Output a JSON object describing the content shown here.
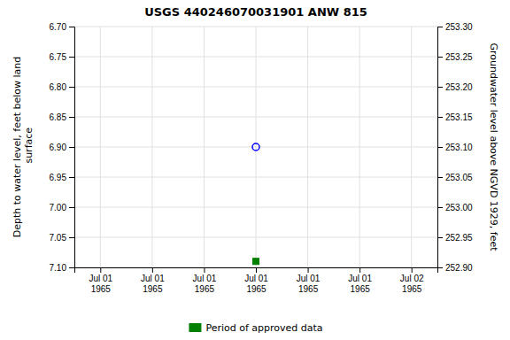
{
  "chart_data": {
    "type": "scatter",
    "title": "USGS 440246070031901 ANW  815",
    "y_label": "Depth to water level, feet below land\n surface",
    "y2_label": "Groundwater level above NGVD 1929, feet",
    "categories": [
      "Jul 01\n1965",
      "Jul 01\n1965",
      "Jul 01\n1965",
      "Jul 01\n1965",
      "Jul 01\n1965",
      "Jul 01\n1965",
      "Jul 02\n1965"
    ],
    "series": [
      {
        "color": "#0000ff",
        "marker": "circle-open",
        "values": [
          null,
          null,
          null,
          6.9,
          null,
          null,
          null
        ]
      },
      {
        "name": "Period of approved data",
        "color": "#008000",
        "marker": "square",
        "values": [
          null,
          null,
          null,
          7.09,
          null,
          null,
          null
        ]
      }
    ],
    "ylim": [
      7.1,
      6.7
    ],
    "yticks": [
      {
        "value": 6.7,
        "label": "6.70"
      },
      6.75,
      {
        "value": 6.8,
        "label": "6.80"
      },
      6.85,
      {
        "value": 6.9,
        "label": "6.90"
      },
      6.95,
      {
        "value": 7.0,
        "label": "7.00"
      },
      7.05,
      {
        "value": 7.1,
        "label": "7.10"
      }
    ],
    "y2lim": [
      252.9,
      253.3
    ],
    "y2ticks": [
      {
        "value": 253.3,
        "label": "253.30"
      },
      253.25,
      {
        "value": 253.2,
        "label": "253.20"
      },
      253.15,
      {
        "value": 253.1,
        "label": "253.10"
      },
      253.05,
      {
        "value": 253.0,
        "label": "253.00"
      },
      252.95,
      {
        "value": 252.9,
        "label": "252.90"
      }
    ],
    "grid": true,
    "legend": "bottom"
  }
}
